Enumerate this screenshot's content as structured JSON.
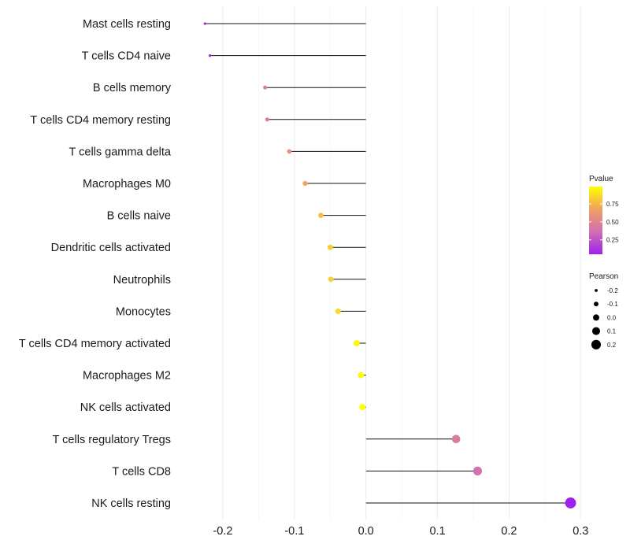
{
  "chart_data": {
    "type": "lollipop",
    "title": "",
    "xlabel": "",
    "ylabel": "",
    "xlim": [
      -0.255,
      0.303
    ],
    "x_ticks": [
      -0.2,
      -0.1,
      0.0,
      0.1,
      0.2,
      0.3
    ],
    "x_tick_labels": [
      "-0.2",
      "-0.1",
      "0.0",
      "0.1",
      "0.2",
      "0.3"
    ],
    "grid": true,
    "categories": [
      "Mast cells resting",
      "T cells CD4 naive",
      "B cells memory",
      "T cells CD4 memory resting",
      "T cells gamma delta",
      "Macrophages M0",
      "B cells naive",
      "Dendritic cells activated",
      "Neutrophils",
      "Monocytes",
      "T cells CD4 memory activated",
      "Macrophages M2",
      "NK cells activated",
      "T cells regulatory  Tregs",
      "T cells CD8",
      "NK cells resting"
    ],
    "pearson": [
      -0.225,
      -0.218,
      -0.141,
      -0.138,
      -0.107,
      -0.085,
      -0.063,
      -0.05,
      -0.049,
      -0.039,
      -0.013,
      -0.007,
      -0.005,
      0.126,
      0.156,
      0.286
    ],
    "pvalue": [
      0.08,
      0.1,
      0.45,
      0.45,
      0.58,
      0.7,
      0.78,
      0.83,
      0.84,
      0.87,
      0.96,
      0.98,
      0.99,
      0.45,
      0.38,
      0.05
    ],
    "legend": {
      "position": "right",
      "color": {
        "title": "Pvalue",
        "ticks": [
          0.25,
          0.5,
          0.75
        ],
        "tick_labels": [
          "0.25",
          "0.50",
          "0.75"
        ],
        "range": [
          0.05,
          0.99
        ],
        "colors": [
          "#a020f0",
          "#d070b0",
          "#f0a060",
          "#ffff00"
        ]
      },
      "size": {
        "title": "Pearson",
        "values": [
          -0.2,
          -0.1,
          0.0,
          0.1,
          0.2
        ],
        "labels": [
          "-0.2",
          "-0.1",
          "0.0",
          "0.1",
          "0.2"
        ]
      }
    }
  }
}
